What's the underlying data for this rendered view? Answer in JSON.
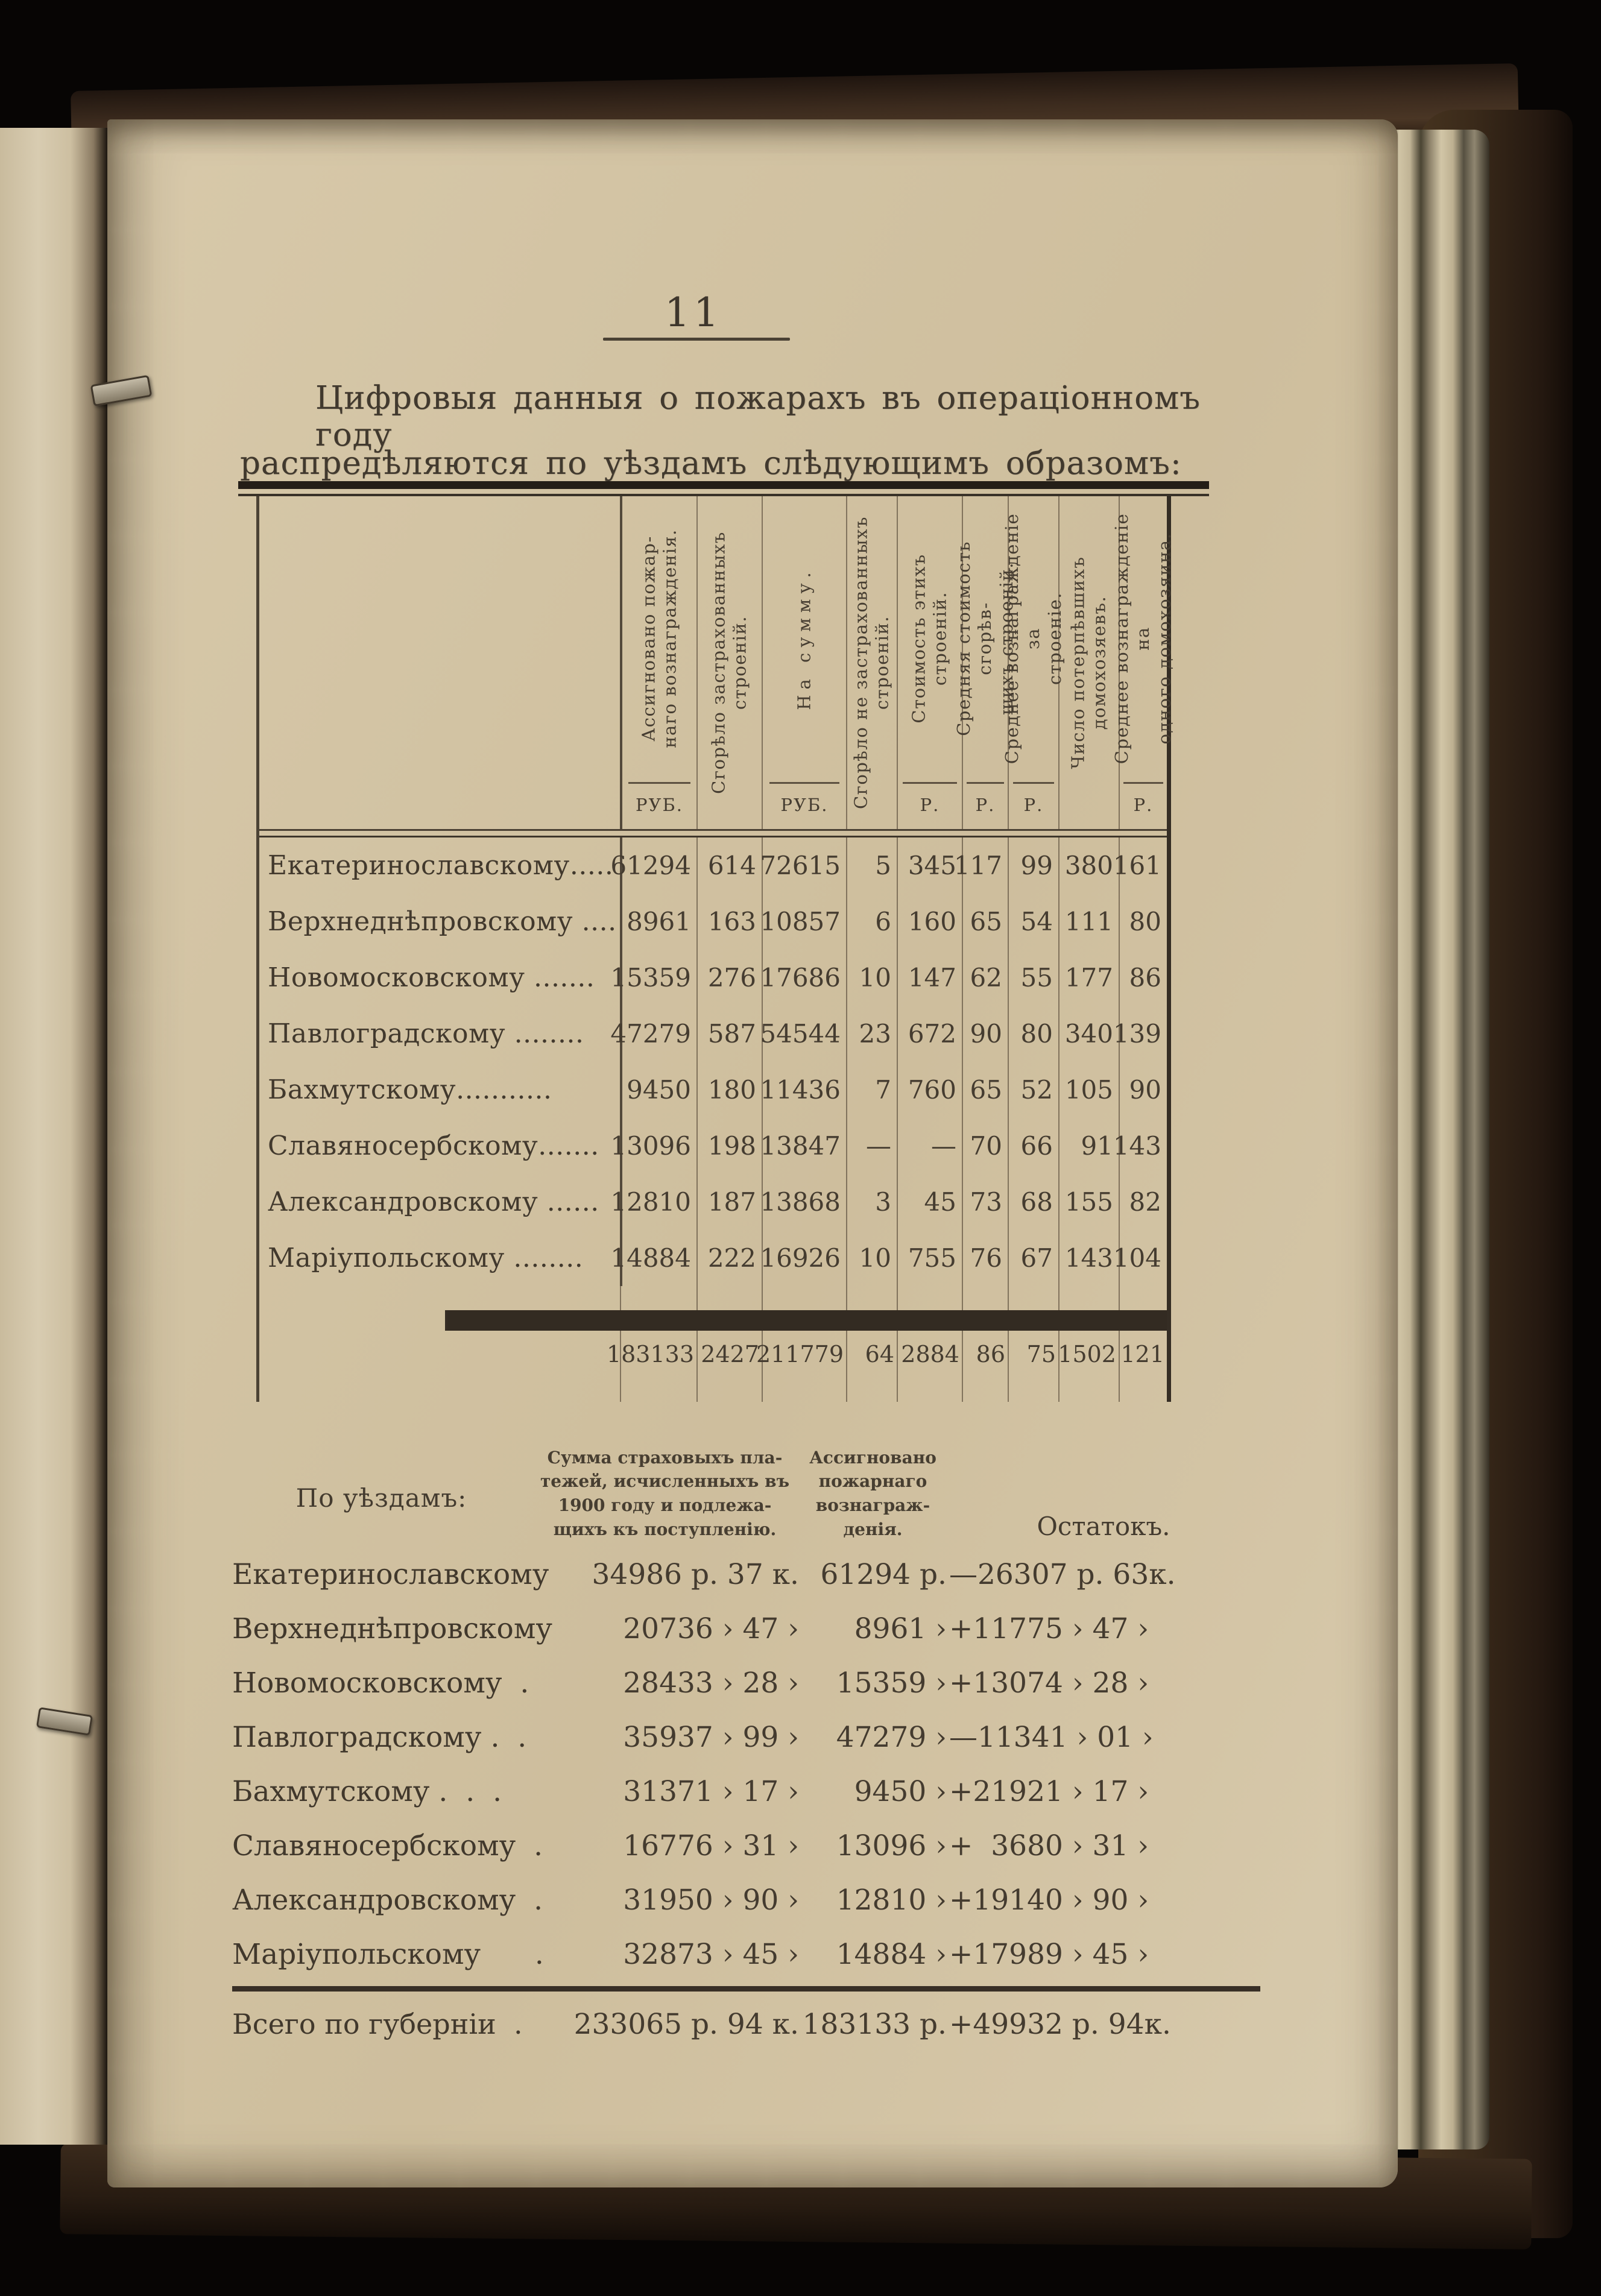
{
  "colors": {
    "paper": "#d2c3a3",
    "ink": "#443b2f",
    "cover": "#3a2a1a",
    "table_line": "#4c3f30"
  },
  "page": {
    "number": "11",
    "intro_line1": "Цифровыя данныя о пожарахъ въ операціонномъ году",
    "intro_line2": "распредѣляются по уѣздамъ слѣдующимъ образомъ:"
  },
  "main_table": {
    "columns": [
      {
        "label": "Ассигновано пожар-\nнаго вознагражденія.",
        "unit": "РУБ."
      },
      {
        "label": "Сгорѣло застрахованныхъ\nстроеній.",
        "unit": ""
      },
      {
        "label": "На сумму.",
        "unit": "РУБ."
      },
      {
        "label": "Сгорѣло не застрахованныхъ\nстроеній.",
        "unit": ""
      },
      {
        "label": "Стоимость этихъ\nстроеній.",
        "unit": "Р."
      },
      {
        "label": "Средняя стоимость сгорѣв-\nшихъ строеній.",
        "unit": "Р."
      },
      {
        "label": "Среднее вознагражденіе за\nстроеніе.",
        "unit": "Р."
      },
      {
        "label": "Число потерпѣвшихъ\nдомохозяевъ.",
        "unit": ""
      },
      {
        "label": "Среднее вознагражденіе на\nодного домохозяина.",
        "unit": "Р."
      }
    ],
    "rows": [
      {
        "name": "Екатеринославскому.....",
        "values": [
          "61294",
          "614",
          "72615",
          "5",
          "345",
          "117",
          "99",
          "380",
          "161"
        ]
      },
      {
        "name": "Верхнеднѣпровскому ....",
        "values": [
          "8961",
          "163",
          "10857",
          "6",
          "160",
          "65",
          "54",
          "111",
          "80"
        ]
      },
      {
        "name": "Новомосковскому .......",
        "values": [
          "15359",
          "276",
          "17686",
          "10",
          "147",
          "62",
          "55",
          "177",
          "86"
        ]
      },
      {
        "name": "Павлоградскому ........",
        "values": [
          "47279",
          "587",
          "54544",
          "23",
          "672",
          "90",
          "80",
          "340",
          "139"
        ]
      },
      {
        "name": "Бахмутскому...........",
        "values": [
          "9450",
          "180",
          "11436",
          "7",
          "760",
          "65",
          "52",
          "105",
          "90"
        ]
      },
      {
        "name": "Славяносербскому.......",
        "values": [
          "13096",
          "198",
          "13847",
          "—",
          "—",
          "70",
          "66",
          "91",
          "143"
        ]
      },
      {
        "name": "Александровскому ......",
        "values": [
          "12810",
          "187",
          "13868",
          "3",
          "45",
          "73",
          "68",
          "155",
          "82"
        ]
      },
      {
        "name": "Маріупольскому ........",
        "values": [
          "14884",
          "222",
          "16926",
          "10",
          "755",
          "76",
          "67",
          "143",
          "104"
        ]
      }
    ],
    "totals": [
      "183133",
      "2427",
      "211779",
      "64",
      "2884",
      "86",
      "75",
      "1502",
      "121"
    ]
  },
  "settlement_table": {
    "headers": {
      "districts": "По уѣздамъ:",
      "premiums": "Сумма страховыхъ пла-\nтежей, исчисленныхъ въ\n1900 году и подлежа-\nщихъ къ поступленію.",
      "assigned": "Ассигновано\nпожарнаго\nвознаграж-\nденія.",
      "remainder": "Остатокъ."
    },
    "rows": [
      {
        "name": "Екатеринославскому",
        "premium": "34986 р. 37 к.",
        "assigned": "61294 р.",
        "remainder": "—26307 р. 63к."
      },
      {
        "name": "Верхнеднѣпровскому",
        "premium": "20736 › 47 ›",
        "assigned": "8961 ›",
        "remainder": "+11775 › 47 ›"
      },
      {
        "name": "Новомосковскому  .",
        "premium": "28433 › 28 ›",
        "assigned": "15359 ›",
        "remainder": "+13074 › 28 ›"
      },
      {
        "name": "Павлоградскому .  .",
        "premium": "35937 › 99 ›",
        "assigned": "47279 ›",
        "remainder": "—11341 › 01 ›"
      },
      {
        "name": "Бахмутскому .  .  .",
        "premium": "31371 › 17 ›",
        "assigned": "9450 ›",
        "remainder": "+21921 › 17 ›"
      },
      {
        "name": "Славяносербскому  .",
        "premium": "16776 › 31 ›",
        "assigned": "13096 ›",
        "remainder": "+  3680 › 31 ›"
      },
      {
        "name": "Александровскому  .",
        "premium": "31950 › 90 ›",
        "assigned": "12810 ›",
        "remainder": "+19140 › 90 ›"
      },
      {
        "name": "Маріупольскому      .",
        "premium": "32873 › 45 ›",
        "assigned": "14884 ›",
        "remainder": "+17989 › 45 ›"
      }
    ],
    "total": {
      "name": "Всего по губерніи  .",
      "premium": "233065 р. 94 к.",
      "assigned": "183133 р.",
      "remainder": "+49932 р. 94к."
    }
  }
}
